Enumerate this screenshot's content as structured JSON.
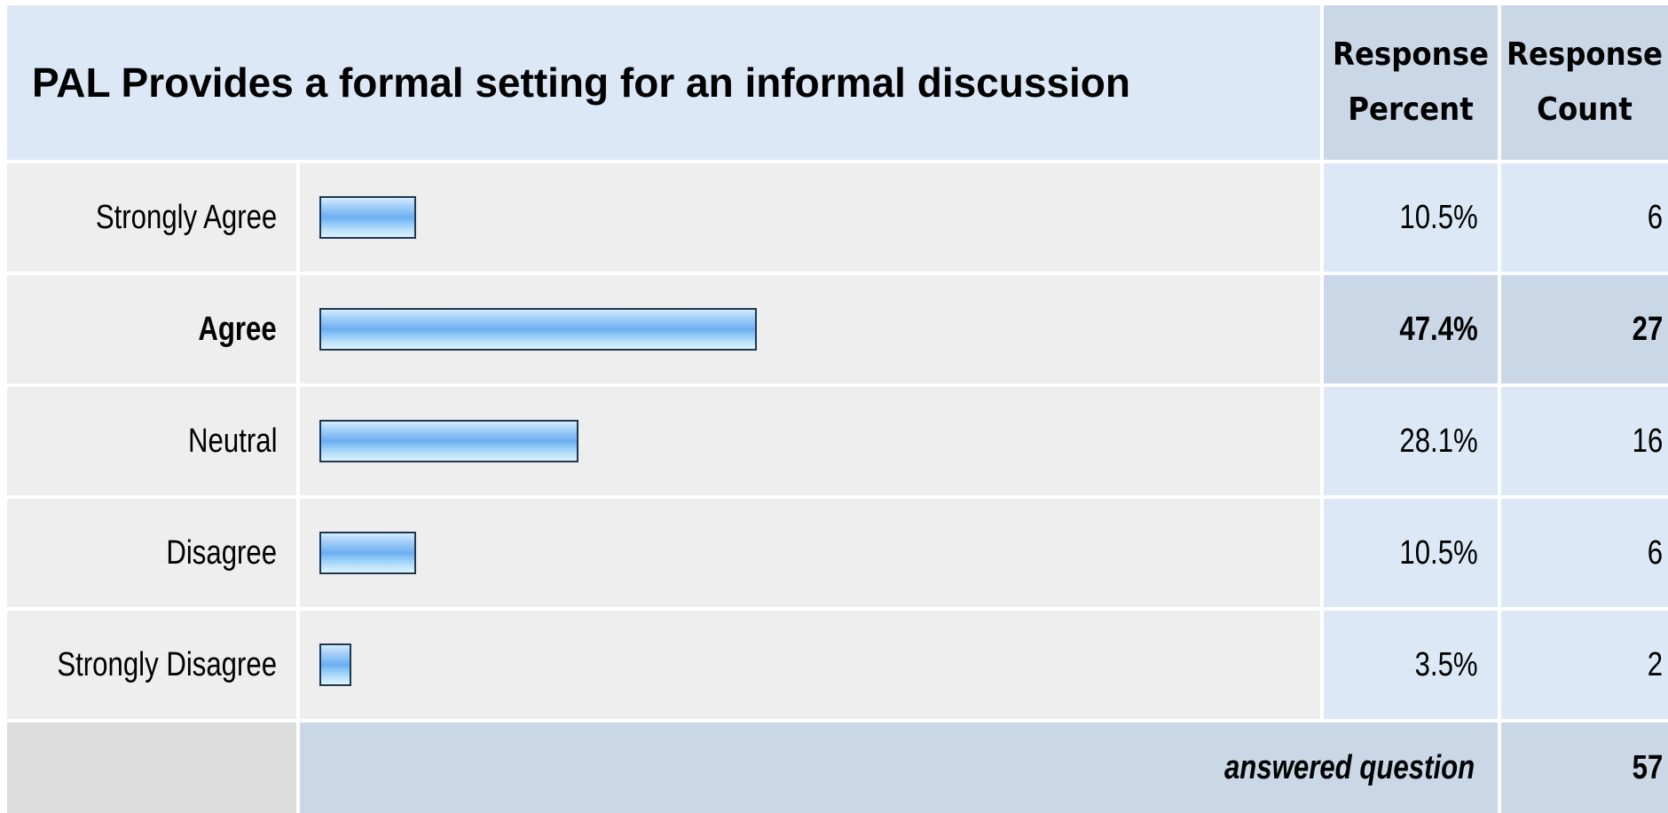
{
  "chart_data": {
    "type": "bar",
    "title": "PAL Provides a formal setting for an informal discussion",
    "column_headers": {
      "percent_line1": "Response",
      "percent_line2": "Percent",
      "count_line1": "Response",
      "count_line2": "Count"
    },
    "categories": [
      "Strongly Agree",
      "Agree",
      "Neutral",
      "Disagree",
      "Strongly Disagree"
    ],
    "values": [
      10.5,
      47.4,
      28.1,
      10.5,
      3.5
    ],
    "percent_labels": [
      "10.5%",
      "47.4%",
      "28.1%",
      "10.5%",
      "3.5%"
    ],
    "counts": [
      "6",
      "27",
      "16",
      "6",
      "2"
    ],
    "highlighted": "Agree",
    "xlim": [
      0,
      100
    ],
    "footer": {
      "label": "answered question",
      "count": "57"
    },
    "colors": {
      "bar_border": "#1d3752",
      "bar_fill": "#84bdf4",
      "header_bg": "#dce8f6",
      "label_bg": "#eeeeee"
    }
  }
}
